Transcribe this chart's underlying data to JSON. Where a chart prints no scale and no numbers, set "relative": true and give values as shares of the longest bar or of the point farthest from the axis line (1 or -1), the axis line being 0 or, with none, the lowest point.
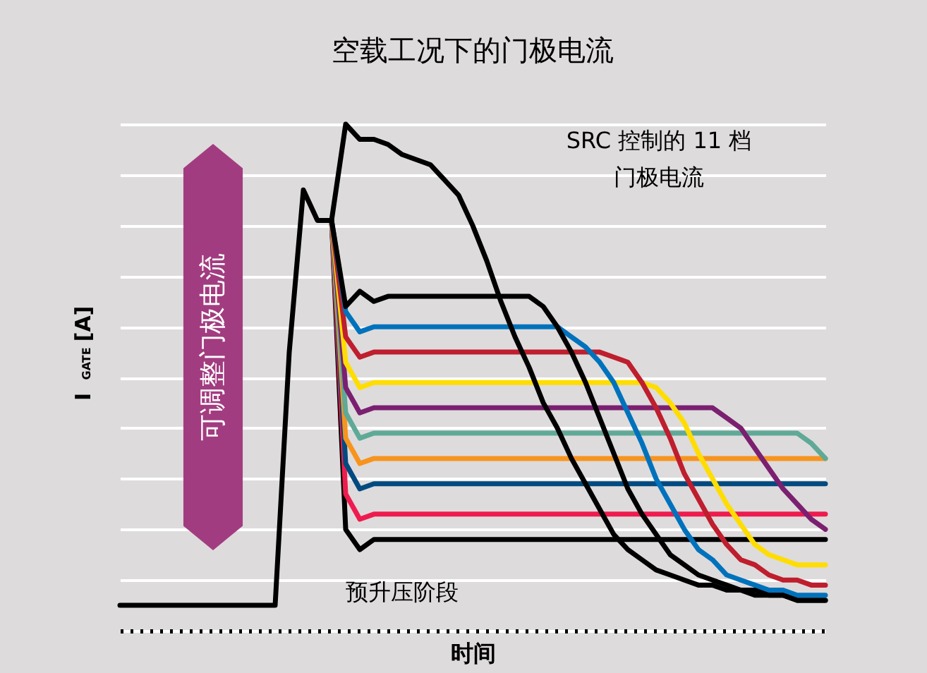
{
  "chart_data": {
    "type": "line",
    "title": "空载工况下的门极电流",
    "xlabel": "时间",
    "ylabel": "I$_{GATE}$ [A]",
    "relative": true,
    "grid": "y",
    "marker": "none",
    "line_style": "solid",
    "annotations": [
      "SRC 控制的 11 档",
      "门极电流",
      "可调整门极电流",
      "预升压阶段"
    ],
    "categories": [
      null,
      null,
      null,
      null,
      null,
      null,
      null,
      null,
      null,
      null,
      null,
      null,
      null,
      null,
      null,
      null,
      null,
      null,
      null,
      null,
      null,
      null,
      null,
      null,
      null,
      null,
      null,
      null,
      null,
      null,
      null,
      null,
      null,
      null,
      null,
      null,
      null,
      null,
      null,
      null,
      null,
      null,
      null,
      null,
      null,
      null,
      null,
      null,
      null,
      null,
      null
    ],
    "series": [
      {
        "color": "#000000",
        "values": [
          0.05,
          0.05,
          0.05,
          0.05,
          0.05,
          0.05,
          0.05,
          0.05,
          0.05,
          0.05,
          0.05,
          0.05,
          0.55,
          0.87,
          0.81,
          0.81,
          1.0,
          0.97,
          0.97,
          0.96,
          0.94,
          0.93,
          0.92,
          0.89,
          0.86,
          0.8,
          0.73,
          0.65,
          0.58,
          0.52,
          0.45,
          0.4,
          0.34,
          0.29,
          0.24,
          0.19,
          0.16,
          0.14,
          0.12,
          0.11,
          0.1,
          0.09,
          0.09,
          0.08,
          0.08,
          0.07,
          0.07,
          0.07,
          0.06,
          0.06,
          0.06
        ]
      },
      {
        "color": "#000000",
        "values": [
          null,
          null,
          null,
          null,
          null,
          null,
          null,
          null,
          null,
          null,
          null,
          null,
          null,
          null,
          null,
          0.81,
          0.64,
          0.67,
          0.65,
          0.66,
          0.66,
          0.66,
          0.66,
          0.66,
          0.66,
          0.66,
          0.66,
          0.66,
          0.66,
          0.66,
          0.64,
          0.6,
          0.55,
          0.49,
          0.42,
          0.35,
          0.28,
          0.23,
          0.19,
          0.15,
          0.13,
          0.11,
          0.1,
          0.09,
          0.08,
          0.08,
          0.07,
          0.07,
          0.06,
          0.06,
          0.06
        ]
      },
      {
        "color": "#0072bc",
        "values": [
          null,
          null,
          null,
          null,
          null,
          null,
          null,
          null,
          null,
          null,
          null,
          null,
          null,
          null,
          null,
          0.81,
          0.63,
          0.59,
          0.6,
          0.6,
          0.6,
          0.6,
          0.6,
          0.6,
          0.6,
          0.6,
          0.6,
          0.6,
          0.6,
          0.6,
          0.6,
          0.6,
          0.58,
          0.56,
          0.53,
          0.49,
          0.43,
          0.37,
          0.3,
          0.25,
          0.2,
          0.16,
          0.14,
          0.11,
          0.1,
          0.09,
          0.08,
          0.08,
          0.07,
          0.07,
          0.07
        ]
      },
      {
        "color": "#be1e2d",
        "values": [
          null,
          null,
          null,
          null,
          null,
          null,
          null,
          null,
          null,
          null,
          null,
          null,
          null,
          null,
          null,
          0.81,
          0.58,
          0.54,
          0.55,
          0.55,
          0.55,
          0.55,
          0.55,
          0.55,
          0.55,
          0.55,
          0.55,
          0.55,
          0.55,
          0.55,
          0.55,
          0.55,
          0.55,
          0.55,
          0.55,
          0.54,
          0.53,
          0.49,
          0.44,
          0.38,
          0.31,
          0.26,
          0.21,
          0.17,
          0.14,
          0.13,
          0.11,
          0.1,
          0.1,
          0.09,
          0.09
        ]
      },
      {
        "color": "#ffdd00",
        "values": [
          null,
          null,
          null,
          null,
          null,
          null,
          null,
          null,
          null,
          null,
          null,
          null,
          null,
          null,
          null,
          0.81,
          0.53,
          0.48,
          0.49,
          0.49,
          0.49,
          0.49,
          0.49,
          0.49,
          0.49,
          0.49,
          0.49,
          0.49,
          0.49,
          0.49,
          0.49,
          0.49,
          0.49,
          0.49,
          0.49,
          0.49,
          0.49,
          0.49,
          0.48,
          0.45,
          0.41,
          0.35,
          0.3,
          0.25,
          0.21,
          0.17,
          0.15,
          0.14,
          0.13,
          0.13,
          0.13
        ]
      },
      {
        "color": "#7b2070",
        "values": [
          null,
          null,
          null,
          null,
          null,
          null,
          null,
          null,
          null,
          null,
          null,
          null,
          null,
          null,
          null,
          0.81,
          0.48,
          0.43,
          0.44,
          0.44,
          0.44,
          0.44,
          0.44,
          0.44,
          0.44,
          0.44,
          0.44,
          0.44,
          0.44,
          0.44,
          0.44,
          0.44,
          0.44,
          0.44,
          0.44,
          0.44,
          0.44,
          0.44,
          0.44,
          0.44,
          0.44,
          0.44,
          0.44,
          0.42,
          0.4,
          0.36,
          0.32,
          0.28,
          0.25,
          0.22,
          0.2
        ]
      },
      {
        "color": "#5fa997",
        "values": [
          null,
          null,
          null,
          null,
          null,
          null,
          null,
          null,
          null,
          null,
          null,
          null,
          null,
          null,
          null,
          0.81,
          0.43,
          0.38,
          0.39,
          0.39,
          0.39,
          0.39,
          0.39,
          0.39,
          0.39,
          0.39,
          0.39,
          0.39,
          0.39,
          0.39,
          0.39,
          0.39,
          0.39,
          0.39,
          0.39,
          0.39,
          0.39,
          0.39,
          0.39,
          0.39,
          0.39,
          0.39,
          0.39,
          0.39,
          0.39,
          0.39,
          0.39,
          0.39,
          0.39,
          0.37,
          0.34
        ]
      },
      {
        "color": "#f7941d",
        "values": [
          null,
          null,
          null,
          null,
          null,
          null,
          null,
          null,
          null,
          null,
          null,
          null,
          null,
          null,
          null,
          0.81,
          0.38,
          0.33,
          0.34,
          0.34,
          0.34,
          0.34,
          0.34,
          0.34,
          0.34,
          0.34,
          0.34,
          0.34,
          0.34,
          0.34,
          0.34,
          0.34,
          0.34,
          0.34,
          0.34,
          0.34,
          0.34,
          0.34,
          0.34,
          0.34,
          0.34,
          0.34,
          0.34,
          0.34,
          0.34,
          0.34,
          0.34,
          0.34,
          0.34,
          0.34,
          0.34
        ]
      },
      {
        "color": "#004a80",
        "values": [
          null,
          null,
          null,
          null,
          null,
          null,
          null,
          null,
          null,
          null,
          null,
          null,
          null,
          null,
          null,
          0.81,
          0.33,
          0.28,
          0.29,
          0.29,
          0.29,
          0.29,
          0.29,
          0.29,
          0.29,
          0.29,
          0.29,
          0.29,
          0.29,
          0.29,
          0.29,
          0.29,
          0.29,
          0.29,
          0.29,
          0.29,
          0.29,
          0.29,
          0.29,
          0.29,
          0.29,
          0.29,
          0.29,
          0.29,
          0.29,
          0.29,
          0.29,
          0.29,
          0.29,
          0.29,
          0.29
        ]
      },
      {
        "color": "#ee1c4e",
        "values": [
          null,
          null,
          null,
          null,
          null,
          null,
          null,
          null,
          null,
          null,
          null,
          null,
          null,
          null,
          null,
          0.81,
          0.27,
          0.22,
          0.23,
          0.23,
          0.23,
          0.23,
          0.23,
          0.23,
          0.23,
          0.23,
          0.23,
          0.23,
          0.23,
          0.23,
          0.23,
          0.23,
          0.23,
          0.23,
          0.23,
          0.23,
          0.23,
          0.23,
          0.23,
          0.23,
          0.23,
          0.23,
          0.23,
          0.23,
          0.23,
          0.23,
          0.23,
          0.23,
          0.23,
          0.23,
          0.23
        ]
      },
      {
        "color": "#000000",
        "values": [
          null,
          null,
          null,
          null,
          null,
          null,
          null,
          null,
          null,
          null,
          null,
          null,
          null,
          null,
          null,
          0.81,
          0.2,
          0.16,
          0.18,
          0.18,
          0.18,
          0.18,
          0.18,
          0.18,
          0.18,
          0.18,
          0.18,
          0.18,
          0.18,
          0.18,
          0.18,
          0.18,
          0.18,
          0.18,
          0.18,
          0.18,
          0.18,
          0.18,
          0.18,
          0.18,
          0.18,
          0.18,
          0.18,
          0.18,
          0.18,
          0.18,
          0.18,
          0.18,
          0.18,
          0.18,
          0.18
        ]
      }
    ]
  }
}
